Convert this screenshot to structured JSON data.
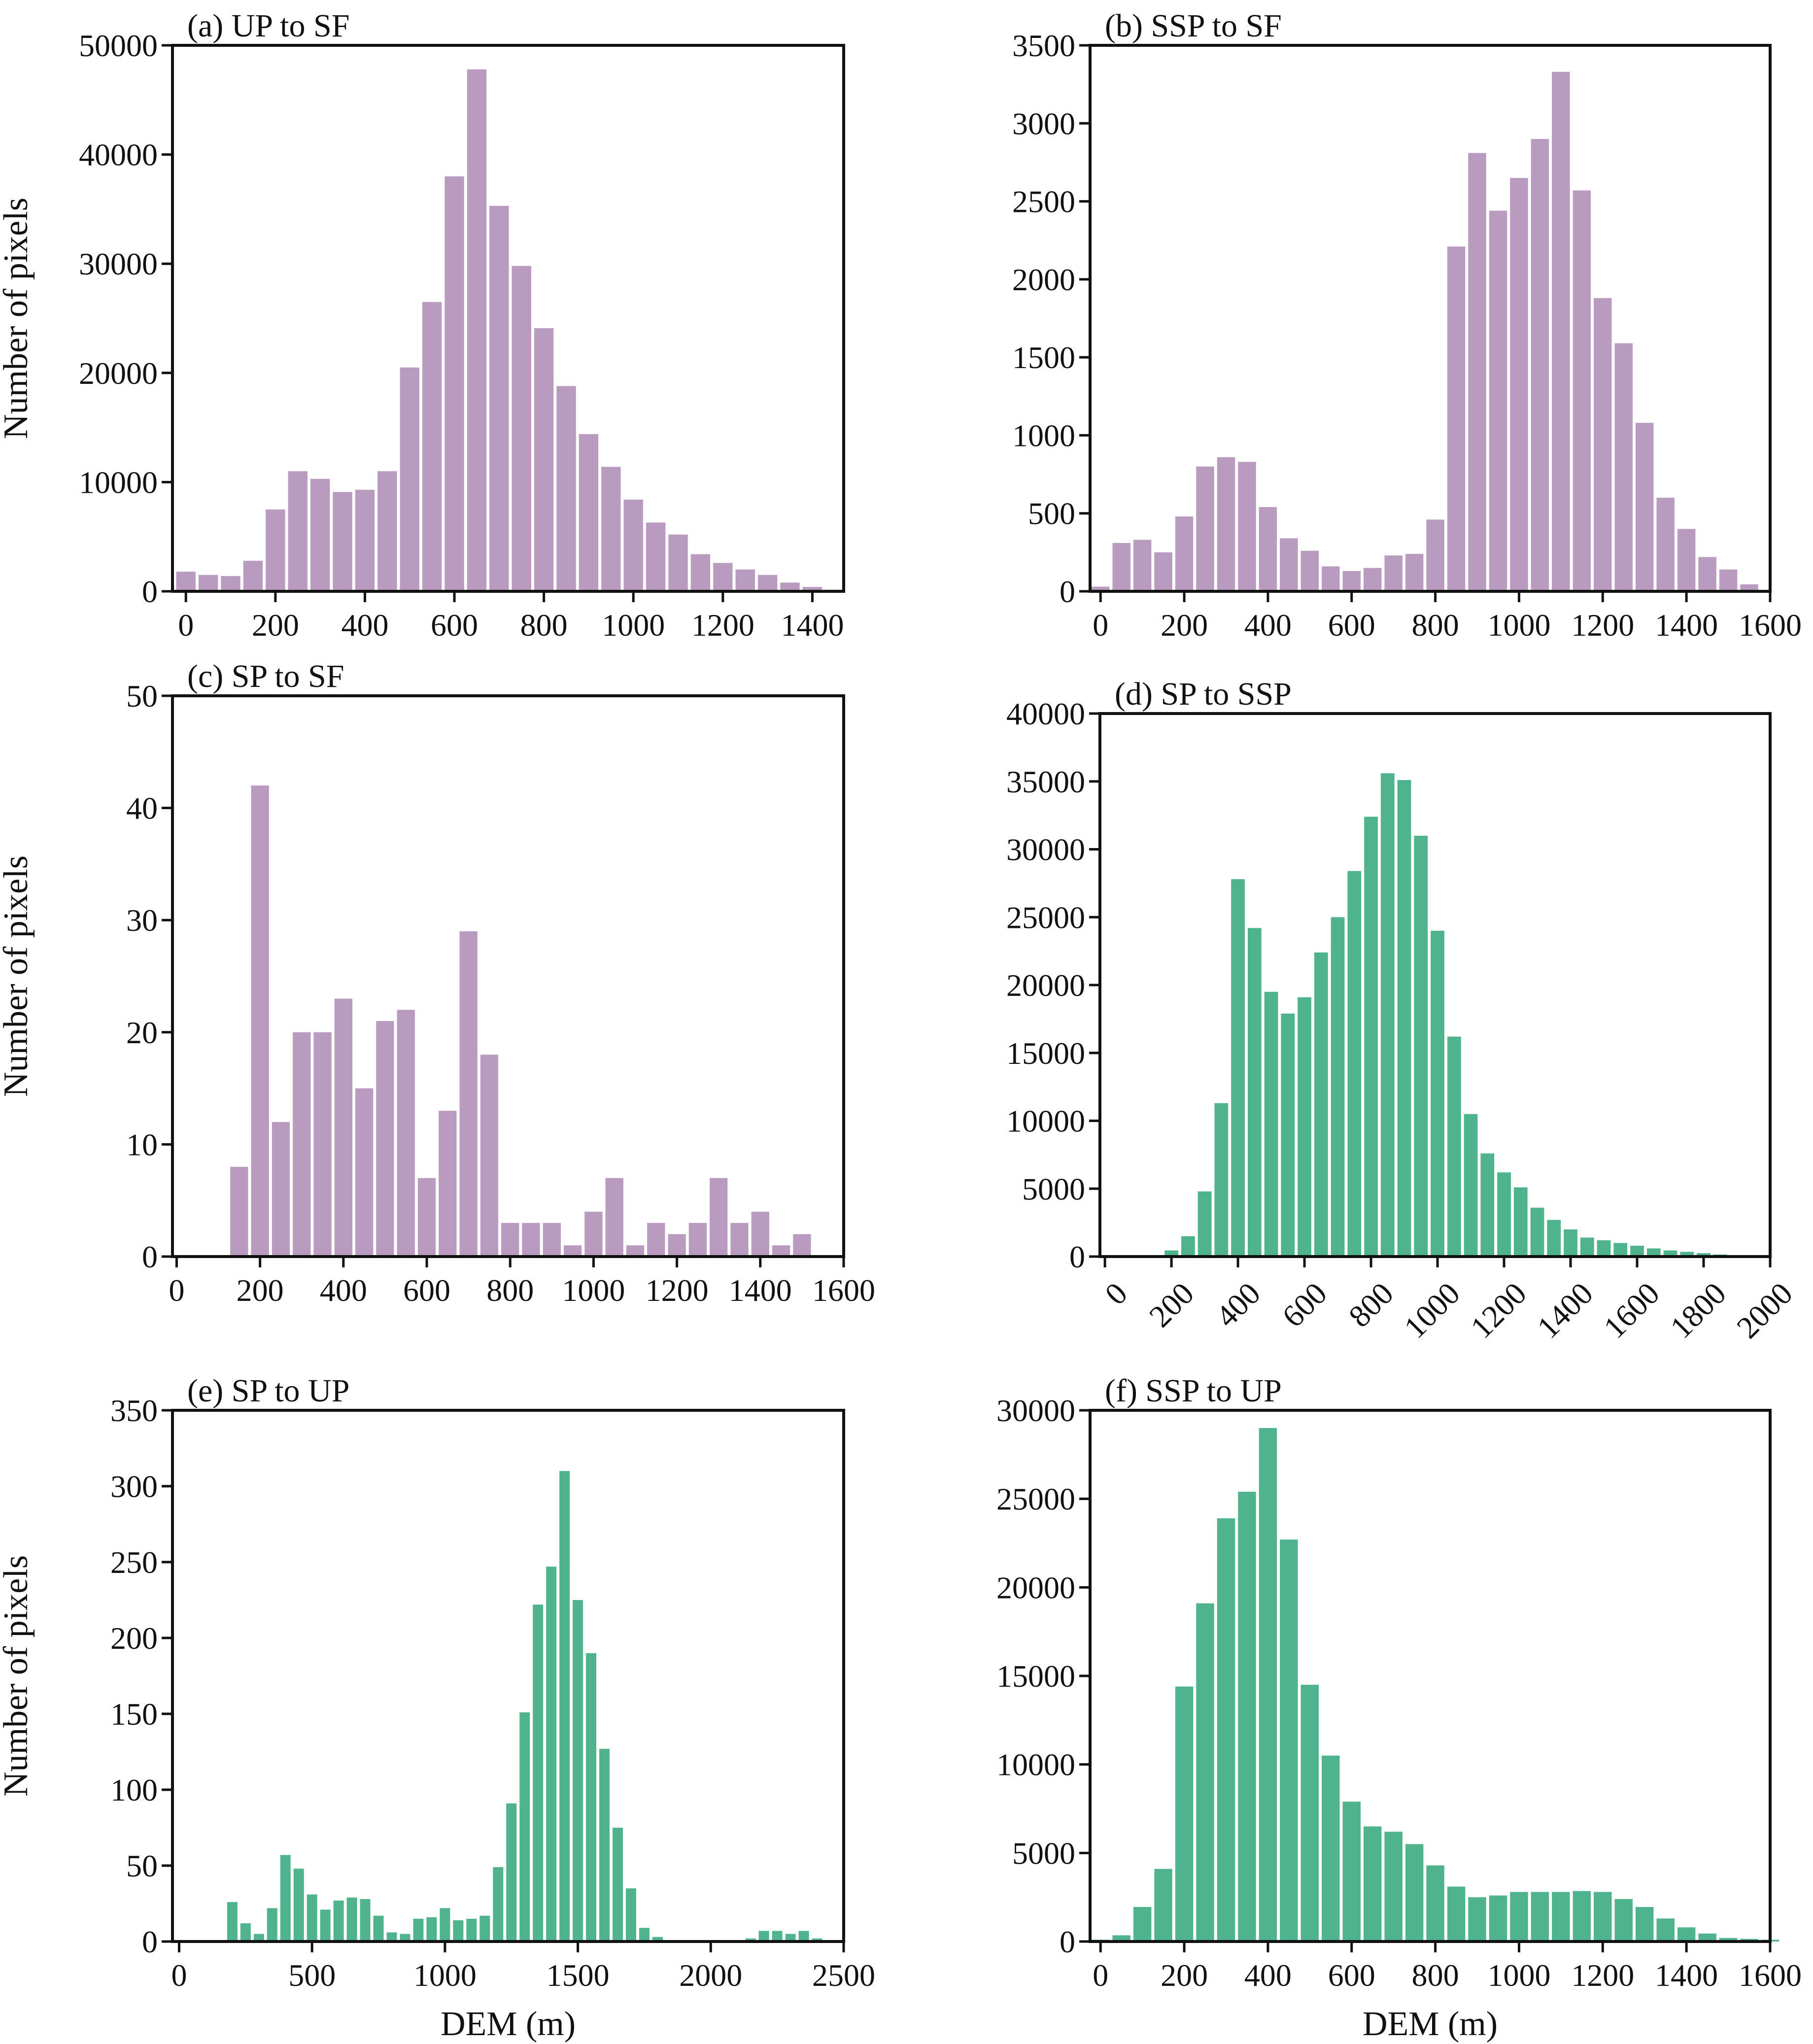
{
  "figure": {
    "colors": {
      "purple": "#BA9BC0",
      "green": "#4FB38D",
      "axis": "#111111"
    }
  },
  "chart_data": [
    {
      "id": "a",
      "type": "bar",
      "title": "(a) UP to SF",
      "color": "purple",
      "xlabel": "",
      "ylabel": "Number of pixels",
      "bin_width": 50,
      "x_start": 0,
      "values": [
        1800,
        1500,
        1400,
        2800,
        7500,
        11000,
        10300,
        9100,
        9300,
        11000,
        20500,
        26500,
        38000,
        47800,
        35300,
        29800,
        24100,
        18800,
        14400,
        11400,
        8400,
        6300,
        5200,
        3400,
        2600,
        2000,
        1500,
        800,
        400,
        150
      ],
      "xlim": [
        -30,
        1470
      ],
      "ylim": [
        0,
        50000
      ],
      "xticks": [
        0,
        200,
        400,
        600,
        800,
        1000,
        1200,
        1400
      ],
      "yticks": [
        0,
        10000,
        20000,
        30000,
        40000,
        50000
      ],
      "xtick_rotation": 0
    },
    {
      "id": "b",
      "type": "bar",
      "title": "(b) SSP to SF",
      "color": "purple",
      "xlabel": "",
      "ylabel": "",
      "bin_width": 50,
      "x_start": 0,
      "values": [
        30,
        310,
        330,
        250,
        480,
        800,
        860,
        830,
        540,
        340,
        260,
        160,
        130,
        150,
        230,
        240,
        460,
        2210,
        2810,
        2440,
        2650,
        2900,
        3330,
        2570,
        1880,
        1590,
        1080,
        600,
        400,
        220,
        140,
        45
      ],
      "xlim": [
        -25,
        1600
      ],
      "ylim": [
        0,
        3500
      ],
      "xticks": [
        0,
        200,
        400,
        600,
        800,
        1000,
        1200,
        1400,
        1600
      ],
      "yticks": [
        0,
        500,
        1000,
        1500,
        2000,
        2500,
        3000,
        3500
      ],
      "xtick_rotation": 0
    },
    {
      "id": "c",
      "type": "bar",
      "title": "(c) SP to SF",
      "color": "purple",
      "xlabel": "",
      "ylabel": "Number of pixels",
      "bin_width": 50,
      "x_start": 150,
      "values": [
        8,
        42,
        12,
        20,
        20,
        23,
        15,
        21,
        22,
        7,
        13,
        29,
        18,
        3,
        3,
        3,
        1,
        4,
        7,
        1,
        3,
        2,
        3,
        7,
        3,
        4,
        1,
        2
      ],
      "xlim": [
        -10,
        1600
      ],
      "ylim": [
        0,
        50
      ],
      "xticks": [
        0,
        200,
        400,
        600,
        800,
        1000,
        1200,
        1400,
        1600
      ],
      "yticks": [
        0,
        10,
        20,
        30,
        40,
        50
      ],
      "xtick_rotation": 0
    },
    {
      "id": "d",
      "type": "bar",
      "title": "(d) SP to SSP",
      "color": "green",
      "xlabel": "",
      "ylabel": "",
      "bin_width": 50,
      "x_start": 150,
      "values": [
        50,
        450,
        1500,
        4800,
        11300,
        27800,
        24200,
        19500,
        17900,
        19100,
        22400,
        25000,
        28400,
        32400,
        35600,
        35100,
        31000,
        24000,
        16200,
        10500,
        7600,
        6200,
        5100,
        3600,
        2700,
        2000,
        1400,
        1200,
        1000,
        800,
        600,
        450,
        350,
        250,
        150,
        100,
        50
      ],
      "xlim": [
        -15,
        2000
      ],
      "ylim": [
        0,
        40000
      ],
      "xticks": [
        0,
        200,
        400,
        600,
        800,
        1000,
        1200,
        1400,
        1600,
        1800,
        2000
      ],
      "yticks": [
        0,
        5000,
        10000,
        15000,
        20000,
        25000,
        30000,
        35000,
        40000
      ],
      "xtick_rotation": -45
    },
    {
      "id": "e",
      "type": "bar",
      "title": "(e) SP to UP",
      "color": "green",
      "xlabel": "DEM (m)",
      "ylabel": "Number of pixels",
      "bin_width": 50,
      "x_start": 200,
      "values": [
        26,
        12,
        5,
        22,
        57,
        48,
        31,
        21,
        27,
        29,
        28,
        17,
        6,
        5,
        15,
        16,
        22,
        14,
        15,
        17,
        49,
        91,
        151,
        222,
        247,
        310,
        225,
        190,
        127,
        75,
        35,
        9,
        3,
        0,
        0,
        0,
        0,
        0,
        1,
        2,
        7,
        7,
        5,
        7,
        2
      ],
      "xlim": [
        -25,
        2500
      ],
      "ylim": [
        0,
        350
      ],
      "xticks": [
        0,
        500,
        1000,
        1500,
        2000,
        2500
      ],
      "yticks": [
        0,
        50,
        100,
        150,
        200,
        250,
        300,
        350
      ],
      "xtick_rotation": 0
    },
    {
      "id": "f",
      "type": "bar",
      "title": "(f) SSP to UP",
      "color": "green",
      "xlabel": "DEM (m)",
      "ylabel": "",
      "bin_width": 50,
      "x_start": 0,
      "values": [
        100,
        350,
        1950,
        4100,
        14400,
        19100,
        23900,
        25400,
        29000,
        22700,
        14500,
        10500,
        7900,
        6500,
        6200,
        5500,
        4300,
        3100,
        2500,
        2600,
        2800,
        2800,
        2800,
        2850,
        2800,
        2400,
        1950,
        1300,
        800,
        450,
        200,
        150,
        100
      ],
      "xlim": [
        -25,
        1600
      ],
      "ylim": [
        0,
        30000
      ],
      "xticks": [
        0,
        200,
        400,
        600,
        800,
        1000,
        1200,
        1400,
        1600
      ],
      "yticks": [
        0,
        5000,
        10000,
        15000,
        20000,
        25000,
        30000
      ],
      "xtick_rotation": 0
    }
  ]
}
